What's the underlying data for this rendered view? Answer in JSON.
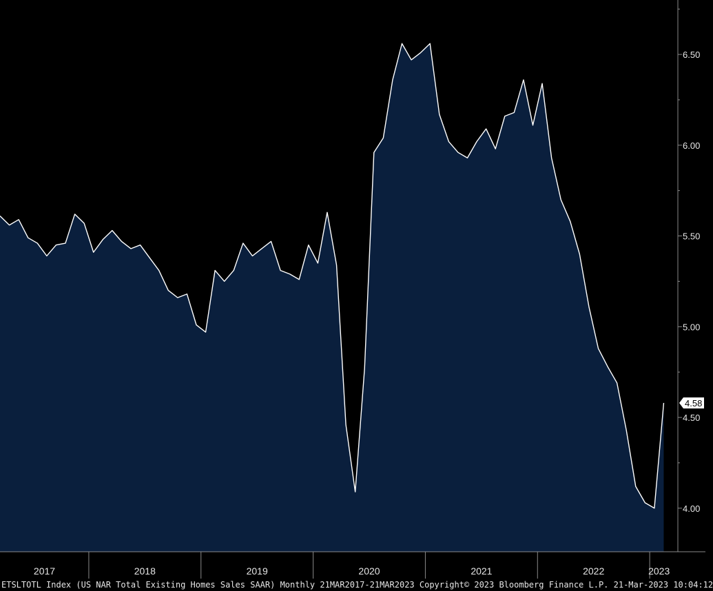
{
  "chart_data": {
    "type": "area",
    "x_start": "2017-03",
    "frequency": "monthly",
    "values": [
      5.61,
      5.56,
      5.59,
      5.49,
      5.46,
      5.39,
      5.45,
      5.46,
      5.62,
      5.57,
      5.41,
      5.48,
      5.53,
      5.47,
      5.43,
      5.45,
      5.38,
      5.31,
      5.2,
      5.16,
      5.18,
      5.01,
      4.97,
      5.31,
      5.25,
      5.31,
      5.46,
      5.39,
      5.43,
      5.47,
      5.31,
      5.29,
      5.26,
      5.45,
      5.35,
      5.63,
      5.34,
      4.46,
      4.09,
      4.77,
      5.96,
      6.04,
      6.36,
      6.56,
      6.47,
      6.51,
      6.56,
      6.17,
      6.02,
      5.96,
      5.93,
      6.02,
      6.09,
      5.98,
      6.16,
      6.18,
      6.36,
      6.11,
      6.34,
      5.93,
      5.7,
      5.58,
      5.4,
      5.11,
      4.88,
      4.78,
      4.69,
      4.43,
      4.12,
      4.03,
      4.0,
      4.58
    ],
    "ylim": [
      3.76,
      6.8
    ],
    "yticks": [
      "4.00",
      "4.50",
      "5.00",
      "5.50",
      "6.00",
      "6.50"
    ],
    "year_labels": [
      "2017",
      "2018",
      "2019",
      "2020",
      "2021",
      "2022",
      "2023"
    ],
    "last_value_label": "4.58",
    "colors": {
      "fill": "#0a1f3d",
      "line": "#ffffff",
      "background": "#000000",
      "axis": "#8a8a8a"
    }
  },
  "footer": "ETSLTOTL Index (US NAR Total Existing Homes Sales SAAR)  Monthly 21MAR2017-21MAR2023 Copyright© 2023 Bloomberg Finance L.P. 21-Mar-2023 10:04:12"
}
